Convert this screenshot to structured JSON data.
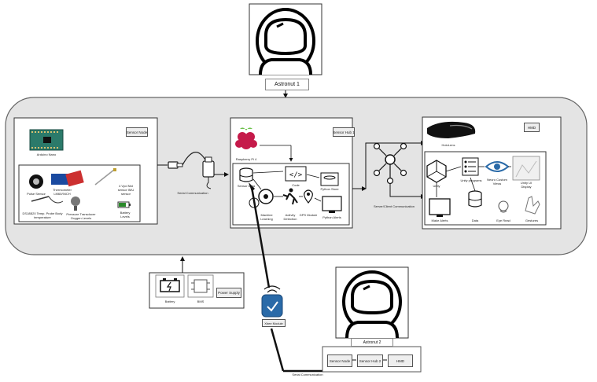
{
  "astronaut_top": {
    "label": "Astronut 1"
  },
  "astronaut_bottom": {
    "label": "Astronut 2"
  },
  "sensor_node": {
    "title": "Sensor Node",
    "board_label": "Arduino Nano",
    "sensors": [
      "Pulse Sensor",
      "Thermometer LM60/94CH",
      "DS18B20 Temp. Probe Body temperature",
      "Pressure Transducer Oxygen Levels",
      "4 Vpd Ntd sensor IMU sensor",
      "Battery Levels"
    ]
  },
  "serial_comm_label": "Serial Communication",
  "sensor_hub": {
    "title": "Sensor Hub 1",
    "board_label": "Raspberry Pi 4",
    "modules": [
      "Sensor Data",
      "Code",
      "Python Store",
      "Machine Learning",
      "Activity Detection",
      "GPS Module",
      "Python Alerts"
    ]
  },
  "network_label": "Server/Client Communication",
  "hmd": {
    "title": "HMD",
    "device_label": "HoloLens",
    "modules": [
      "Unity",
      "Unity programs",
      "Neuro Custom Views",
      "Unity UI Display",
      "Make Alerts",
      "Data",
      "Eye Read",
      "Gestures"
    ]
  },
  "power": {
    "battery_label": "Battery",
    "bms_label": "BMS",
    "title": "Power Supply"
  },
  "xbee_label": "Xbee Module",
  "bottom_bar": {
    "items": [
      "Sensor Node",
      "Sensor Hub 2",
      "HMD"
    ],
    "caption": "Serial Communication"
  }
}
